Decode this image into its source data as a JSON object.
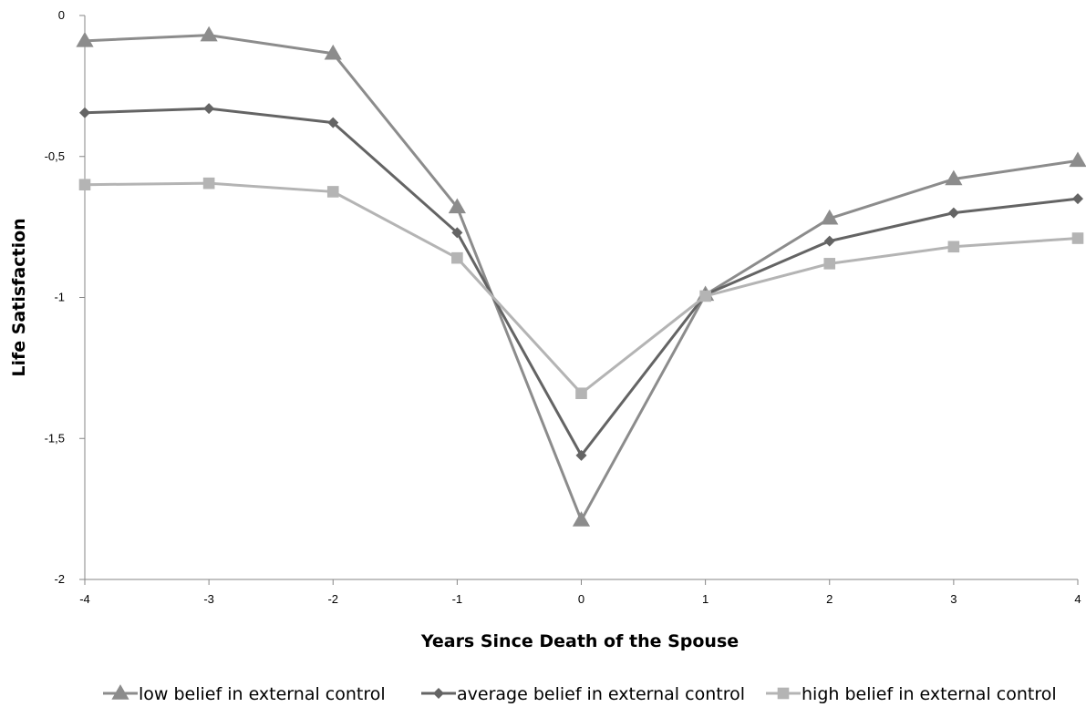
{
  "chart_data": {
    "type": "line",
    "title": "",
    "xlabel": "Years Since Death of the Spouse",
    "ylabel": "Life Satisfaction",
    "x": [
      -4,
      -3,
      -2,
      -1,
      0,
      1,
      2,
      3,
      4
    ],
    "x_tick_labels": [
      "-4",
      "-3",
      "-2",
      "-1",
      "0",
      "1",
      "2",
      "3",
      "4"
    ],
    "y_ticks": [
      0,
      -0.5,
      -1,
      -1.5,
      -2
    ],
    "y_tick_labels": [
      "0",
      "-0,5",
      "-1",
      "-1,5",
      "-2"
    ],
    "xlim": [
      -4,
      4
    ],
    "ylim": [
      -2,
      0
    ],
    "grid": false,
    "legend_position": "bottom",
    "series": [
      {
        "name": "low belief in external control",
        "marker": "triangle",
        "color": "#8c8c8c",
        "values": [
          -0.09,
          -0.07,
          -0.135,
          -0.68,
          -1.79,
          -0.99,
          -0.72,
          -0.58,
          -0.515
        ]
      },
      {
        "name": "average belief in external control",
        "marker": "diamond",
        "color": "#646464",
        "values": [
          -0.345,
          -0.33,
          -0.38,
          -0.77,
          -1.56,
          -0.99,
          -0.8,
          -0.7,
          -0.65
        ]
      },
      {
        "name": "high belief in external control",
        "marker": "square",
        "color": "#b4b4b4",
        "values": [
          -0.6,
          -0.595,
          -0.625,
          -0.86,
          -1.34,
          -0.995,
          -0.88,
          -0.82,
          -0.79
        ]
      }
    ]
  }
}
